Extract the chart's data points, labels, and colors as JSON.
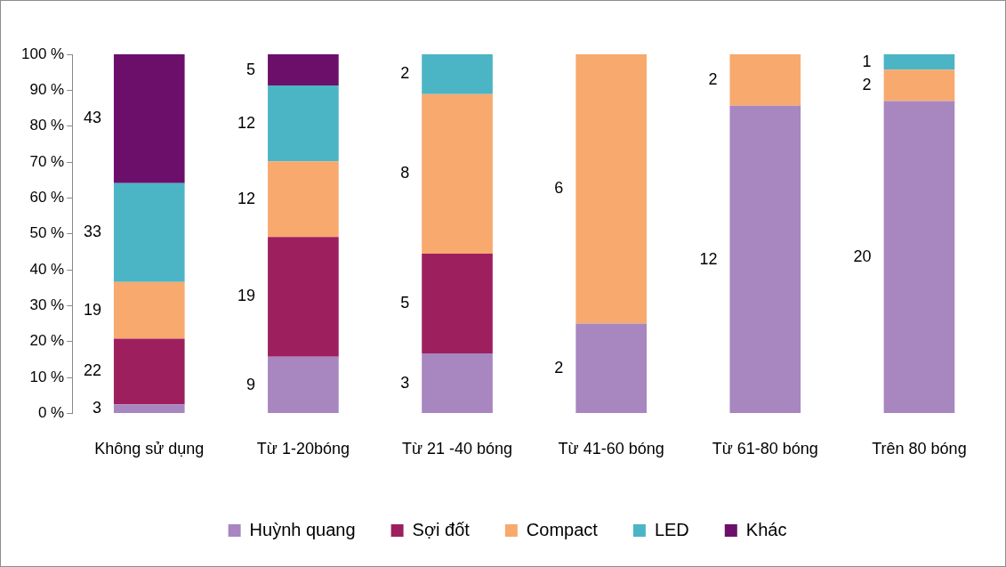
{
  "chart_data": {
    "type": "bar",
    "stacked": true,
    "categories": [
      "Không sử dụng",
      "Từ 1-20bóng",
      "Từ 21 -40 bóng",
      "Từ 41-60 bóng",
      "Từ 61-80 bóng",
      "Trên 80 bóng"
    ],
    "series": [
      {
        "name": "Huỳnh quang",
        "color": "#a886c0",
        "values": [
          2.5,
          15.8,
          16.7,
          25,
          85.7,
          87.0
        ]
      },
      {
        "name": "Sợi đốt",
        "color": "#9e1f5e",
        "values": [
          18.3,
          33.3,
          27.8,
          0,
          0,
          0
        ]
      },
      {
        "name": "Compact",
        "color": "#f7a96e",
        "values": [
          15.8,
          21.1,
          44.4,
          75,
          14.3,
          8.7
        ]
      },
      {
        "name": "LED",
        "color": "#4bb5c5",
        "values": [
          27.5,
          21.1,
          11.1,
          0,
          0,
          4.3
        ]
      },
      {
        "name": "Khác",
        "color": "#6c0f6b",
        "values": [
          35.9,
          8.7,
          0,
          0,
          0,
          0
        ]
      }
    ],
    "annotations": [
      "3",
      "22",
      "19",
      "33",
      "43",
      "9",
      "19",
      "12",
      "12",
      "5",
      "3",
      "5",
      "8",
      "2",
      "2",
      "6",
      "12",
      "2",
      "20",
      "2",
      "1"
    ],
    "ylim": [
      0,
      100
    ],
    "yticks": [
      {
        "value": 0,
        "label": "0 %"
      },
      {
        "value": 10,
        "label": "10 %"
      },
      {
        "value": 20,
        "label": "20 %"
      },
      {
        "value": 30,
        "label": "30 %"
      },
      {
        "value": 40,
        "label": "40 %"
      },
      {
        "value": 50,
        "label": "50 %"
      },
      {
        "value": 60,
        "label": "60 %"
      },
      {
        "value": 70,
        "label": "70 %"
      },
      {
        "value": 80,
        "label": "80 %"
      },
      {
        "value": 90,
        "label": "90 %"
      },
      {
        "value": 100,
        "label": "100 %"
      }
    ],
    "grid": false,
    "legend": "bottom"
  }
}
